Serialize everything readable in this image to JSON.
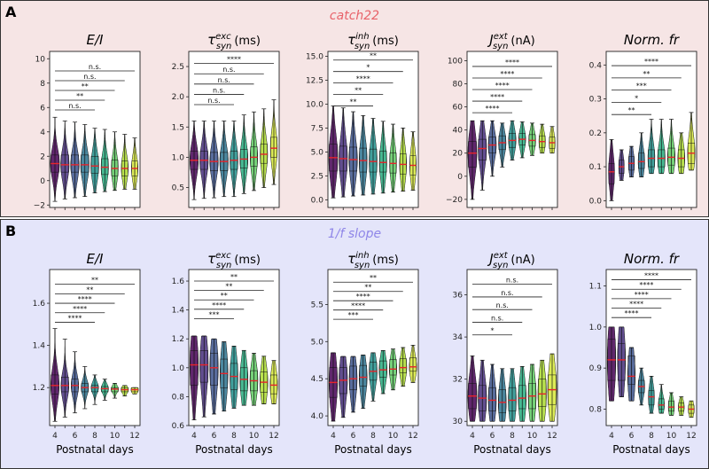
{
  "figure": {
    "panels": [
      {
        "label": "A",
        "title": "catch22",
        "color": "#e8636a",
        "bg": "#f6e5e5"
      },
      {
        "label": "B",
        "title": "1/f slope",
        "color": "#8f86e8",
        "bg": "#e4e5fa"
      }
    ],
    "xlabel": "Postnatal days",
    "xticks": [
      "4",
      "6",
      "8",
      "10",
      "12"
    ]
  },
  "chart_data": [
    {
      "id": "A1",
      "panel": "A",
      "type": "violin",
      "title": "E/I",
      "title_parts": [
        "E/I"
      ],
      "x": [
        4,
        5,
        6,
        7,
        8,
        9,
        10,
        11,
        12
      ],
      "ylim": [
        -2.2,
        10.6
      ],
      "yticks": [
        "−2",
        "0",
        "2",
        "4",
        "6",
        "8",
        "10"
      ],
      "ytick_values": [
        -2,
        0,
        2,
        4,
        6,
        8,
        10
      ],
      "medians": [
        1.4,
        1.3,
        1.3,
        1.3,
        1.2,
        1.1,
        1.0,
        1.0,
        1.0
      ],
      "q1": [
        0.7,
        0.7,
        0.7,
        0.7,
        0.6,
        0.5,
        0.4,
        0.4,
        0.4
      ],
      "q3": [
        2.1,
        2.1,
        2.1,
        2.1,
        2.0,
        1.8,
        1.7,
        1.6,
        1.6
      ],
      "mins": [
        -1.7,
        -1.5,
        -1.4,
        -1.3,
        -1.0,
        -0.9,
        -0.8,
        -0.7,
        -0.7
      ],
      "maxs": [
        5.2,
        4.9,
        4.8,
        4.6,
        4.3,
        4.2,
        4.0,
        3.8,
        3.5
      ],
      "widths": [
        0.9,
        0.85,
        0.85,
        0.85,
        0.8,
        0.75,
        0.7,
        0.7,
        0.65
      ],
      "significance": [
        {
          "label": "n.s.",
          "to": 12,
          "y": 9.0
        },
        {
          "label": "n.s.",
          "to": 11,
          "y": 8.2
        },
        {
          "label": "**",
          "to": 10,
          "y": 7.4
        },
        {
          "label": "**",
          "to": 9,
          "y": 6.6
        },
        {
          "label": "n.s.",
          "to": 8,
          "y": 5.8
        }
      ]
    },
    {
      "id": "A2",
      "panel": "A",
      "type": "violin",
      "title": "τ exc syn (ms)",
      "title_parts": [
        "τ",
        "exc",
        "syn",
        "(ms)"
      ],
      "x": [
        4,
        5,
        6,
        7,
        8,
        9,
        10,
        11,
        12
      ],
      "ylim": [
        0.17,
        2.75
      ],
      "yticks": [
        "0.5",
        "1.0",
        "1.5",
        "2.0",
        "2.5"
      ],
      "ytick_values": [
        0.5,
        1.0,
        1.5,
        2.0,
        2.5
      ],
      "medians": [
        0.95,
        0.95,
        0.93,
        0.93,
        0.95,
        0.97,
        1.0,
        1.05,
        1.15
      ],
      "q1": [
        0.8,
        0.8,
        0.78,
        0.78,
        0.8,
        0.82,
        0.85,
        0.9,
        1.0
      ],
      "q3": [
        1.1,
        1.1,
        1.08,
        1.08,
        1.1,
        1.13,
        1.17,
        1.22,
        1.33
      ],
      "mins": [
        0.3,
        0.32,
        0.33,
        0.35,
        0.35,
        0.4,
        0.45,
        0.5,
        0.55
      ],
      "maxs": [
        1.6,
        1.6,
        1.6,
        1.6,
        1.6,
        1.7,
        1.75,
        1.8,
        1.95
      ],
      "widths": [
        0.85,
        0.85,
        0.85,
        0.85,
        0.8,
        0.8,
        0.75,
        0.75,
        0.7
      ],
      "significance": [
        {
          "label": "****",
          "to": 12,
          "y": 2.55
        },
        {
          "label": "n.s.",
          "to": 11,
          "y": 2.38
        },
        {
          "label": "n.s.",
          "to": 10,
          "y": 2.21
        },
        {
          "label": "n.s.",
          "to": 9,
          "y": 2.04
        },
        {
          "label": "n.s.",
          "to": 8,
          "y": 1.87
        }
      ]
    },
    {
      "id": "A3",
      "panel": "A",
      "type": "violin",
      "title": "τ inh syn (ms)",
      "title_parts": [
        "τ",
        "inh",
        "syn",
        "(ms)"
      ],
      "x": [
        4,
        5,
        6,
        7,
        8,
        9,
        10,
        11,
        12
      ],
      "ylim": [
        -0.8,
        15.5
      ],
      "yticks": [
        "0.0",
        "2.5",
        "5.0",
        "7.5",
        "10.0",
        "12.5",
        "15.0"
      ],
      "ytick_values": [
        0,
        2.5,
        5,
        7.5,
        10,
        12.5,
        15
      ],
      "medians": [
        4.4,
        4.3,
        4.2,
        4.1,
        4.0,
        3.9,
        3.8,
        3.7,
        3.6
      ],
      "q1": [
        3.0,
        3.0,
        3.0,
        2.9,
        2.9,
        2.9,
        2.8,
        2.7,
        2.6
      ],
      "q3": [
        5.8,
        5.6,
        5.5,
        5.4,
        5.3,
        5.1,
        4.9,
        4.8,
        4.6
      ],
      "mins": [
        0.2,
        0.3,
        0.4,
        0.5,
        0.6,
        0.7,
        0.8,
        0.9,
        1.0
      ],
      "maxs": [
        9.8,
        9.6,
        9.2,
        8.8,
        8.5,
        8.2,
        7.9,
        7.5,
        7.1
      ],
      "widths": [
        0.9,
        0.85,
        0.85,
        0.8,
        0.8,
        0.75,
        0.7,
        0.7,
        0.65
      ],
      "significance": [
        {
          "label": "**",
          "to": 12,
          "y": 14.6
        },
        {
          "label": "*",
          "to": 11,
          "y": 13.4
        },
        {
          "label": "****",
          "to": 10,
          "y": 12.2
        },
        {
          "label": "**",
          "to": 9,
          "y": 11.0
        },
        {
          "label": "**",
          "to": 8,
          "y": 9.8
        }
      ]
    },
    {
      "id": "A4",
      "panel": "A",
      "type": "violin",
      "title": "J ext syn (nA)",
      "title_parts": [
        "J",
        "ext",
        "syn",
        "(nA)"
      ],
      "x": [
        4,
        5,
        6,
        7,
        8,
        9,
        10,
        11,
        12
      ],
      "ylim": [
        -27,
        108
      ],
      "yticks": [
        "−20",
        "0",
        "20",
        "40",
        "60",
        "80",
        "100"
      ],
      "ytick_values": [
        -20,
        0,
        20,
        40,
        60,
        80,
        100
      ],
      "medians": [
        20,
        24,
        27,
        29,
        31,
        32,
        31,
        30,
        29
      ],
      "q1": [
        8,
        14,
        20,
        23,
        25,
        27,
        26,
        25,
        24
      ],
      "q3": [
        30,
        32,
        34,
        35,
        37,
        37,
        36,
        35,
        34
      ],
      "mins": [
        -20,
        -12,
        0,
        8,
        14,
        16,
        18,
        20,
        20
      ],
      "maxs": [
        48,
        48,
        48,
        46,
        48,
        47,
        46,
        45,
        43
      ],
      "widths": [
        0.9,
        0.85,
        0.8,
        0.75,
        0.75,
        0.7,
        0.7,
        0.65,
        0.6
      ],
      "significance": [
        {
          "label": "****",
          "to": 12,
          "y": 95
        },
        {
          "label": "****",
          "to": 11,
          "y": 85
        },
        {
          "label": "****",
          "to": 10,
          "y": 75
        },
        {
          "label": "****",
          "to": 9,
          "y": 65
        },
        {
          "label": "****",
          "to": 8,
          "y": 55
        }
      ]
    },
    {
      "id": "A5",
      "panel": "A",
      "type": "violin",
      "title": "Norm. fr",
      "title_parts": [
        "Norm. fr"
      ],
      "x": [
        4,
        5,
        6,
        7,
        8,
        9,
        10,
        11,
        12
      ],
      "ylim": [
        -0.02,
        0.44
      ],
      "yticks": [
        "0.0",
        "0.1",
        "0.2",
        "0.3",
        "0.4"
      ],
      "ytick_values": [
        0,
        0.1,
        0.2,
        0.3,
        0.4
      ],
      "medians": [
        0.085,
        0.1,
        0.11,
        0.115,
        0.125,
        0.125,
        0.128,
        0.125,
        0.14
      ],
      "q1": [
        0.05,
        0.08,
        0.09,
        0.095,
        0.1,
        0.1,
        0.105,
        0.1,
        0.11
      ],
      "q3": [
        0.11,
        0.12,
        0.13,
        0.14,
        0.15,
        0.15,
        0.155,
        0.15,
        0.17
      ],
      "mins": [
        0.0,
        0.06,
        0.07,
        0.07,
        0.08,
        0.08,
        0.08,
        0.08,
        0.09
      ],
      "maxs": [
        0.18,
        0.15,
        0.16,
        0.2,
        0.24,
        0.24,
        0.24,
        0.2,
        0.26
      ],
      "widths": [
        0.6,
        0.55,
        0.6,
        0.65,
        0.7,
        0.75,
        0.75,
        0.7,
        0.75
      ],
      "significance": [
        {
          "label": "****",
          "to": 12,
          "y": 0.398
        },
        {
          "label": "**",
          "to": 11,
          "y": 0.362
        },
        {
          "label": "***",
          "to": 10,
          "y": 0.326
        },
        {
          "label": "*",
          "to": 9,
          "y": 0.29
        },
        {
          "label": "**",
          "to": 8,
          "y": 0.254
        }
      ]
    },
    {
      "id": "B1",
      "panel": "B",
      "type": "violin",
      "title": "E/I",
      "title_parts": [
        "E/I"
      ],
      "x": [
        4,
        5,
        6,
        7,
        8,
        9,
        10,
        11,
        12
      ],
      "ylim": [
        1.02,
        1.76
      ],
      "yticks": [
        "1.2",
        "1.4",
        "1.6"
      ],
      "ytick_values": [
        1.2,
        1.4,
        1.6
      ],
      "medians": [
        1.21,
        1.21,
        1.21,
        1.2,
        1.2,
        1.195,
        1.193,
        1.19,
        1.19
      ],
      "q1": [
        1.17,
        1.18,
        1.18,
        1.18,
        1.18,
        1.18,
        1.18,
        1.18,
        1.18
      ],
      "q3": [
        1.26,
        1.25,
        1.24,
        1.22,
        1.21,
        1.205,
        1.2,
        1.2,
        1.2
      ],
      "mins": [
        1.04,
        1.06,
        1.08,
        1.1,
        1.12,
        1.14,
        1.15,
        1.16,
        1.17
      ],
      "maxs": [
        1.48,
        1.43,
        1.37,
        1.3,
        1.26,
        1.24,
        1.22,
        1.21,
        1.2
      ],
      "widths": [
        0.85,
        0.8,
        0.75,
        0.75,
        0.75,
        0.75,
        0.75,
        0.75,
        0.75
      ],
      "significance": [
        {
          "label": "**",
          "to": 12,
          "y": 1.69
        },
        {
          "label": "**",
          "to": 11,
          "y": 1.645
        },
        {
          "label": "****",
          "to": 10,
          "y": 1.6
        },
        {
          "label": "****",
          "to": 9,
          "y": 1.555
        },
        {
          "label": "****",
          "to": 8,
          "y": 1.51
        }
      ]
    },
    {
      "id": "B2",
      "panel": "B",
      "type": "violin",
      "title": "τ exc syn (ms)",
      "title_parts": [
        "τ",
        "exc",
        "syn",
        "(ms)"
      ],
      "x": [
        4,
        5,
        6,
        7,
        8,
        9,
        10,
        11,
        12
      ],
      "ylim": [
        0.6,
        1.68
      ],
      "yticks": [
        "0.6",
        "0.8",
        "1.0",
        "1.2",
        "1.4",
        "1.6"
      ],
      "ytick_values": [
        0.6,
        0.8,
        1.0,
        1.2,
        1.4,
        1.6
      ],
      "medians": [
        1.02,
        1.02,
        1.0,
        0.96,
        0.94,
        0.92,
        0.91,
        0.9,
        0.88
      ],
      "q1": [
        0.88,
        0.9,
        0.88,
        0.86,
        0.85,
        0.84,
        0.84,
        0.83,
        0.82
      ],
      "q3": [
        1.12,
        1.12,
        1.1,
        1.06,
        1.03,
        1.0,
        0.98,
        0.97,
        0.95
      ],
      "mins": [
        0.64,
        0.66,
        0.68,
        0.7,
        0.72,
        0.74,
        0.74,
        0.75,
        0.75
      ],
      "maxs": [
        1.22,
        1.22,
        1.2,
        1.18,
        1.15,
        1.12,
        1.1,
        1.08,
        1.05
      ],
      "widths": [
        0.85,
        0.85,
        0.85,
        0.8,
        0.8,
        0.8,
        0.8,
        0.8,
        0.75
      ],
      "significance": [
        {
          "label": "**",
          "to": 12,
          "y": 1.6
        },
        {
          "label": "**",
          "to": 11,
          "y": 1.535
        },
        {
          "label": "**",
          "to": 10,
          "y": 1.47
        },
        {
          "label": "****",
          "to": 9,
          "y": 1.405
        },
        {
          "label": "***",
          "to": 8,
          "y": 1.34
        }
      ]
    },
    {
      "id": "B3",
      "panel": "B",
      "type": "violin",
      "title": "τ inh syn (ms)",
      "title_parts": [
        "τ",
        "inh",
        "syn",
        "(ms)"
      ],
      "x": [
        4,
        5,
        6,
        7,
        8,
        9,
        10,
        11,
        12
      ],
      "ylim": [
        3.87,
        5.97
      ],
      "yticks": [
        "4.0",
        "4.5",
        "5.0",
        "5.5"
      ],
      "ytick_values": [
        4.0,
        4.5,
        5.0,
        5.5
      ],
      "medians": [
        4.45,
        4.48,
        4.5,
        4.52,
        4.6,
        4.62,
        4.63,
        4.65,
        4.66
      ],
      "q1": [
        4.25,
        4.3,
        4.35,
        4.4,
        4.48,
        4.52,
        4.55,
        4.58,
        4.6
      ],
      "q3": [
        4.65,
        4.65,
        4.67,
        4.68,
        4.72,
        4.74,
        4.76,
        4.77,
        4.78
      ],
      "mins": [
        3.93,
        3.98,
        4.05,
        4.1,
        4.2,
        4.3,
        4.35,
        4.4,
        4.45
      ],
      "maxs": [
        4.85,
        4.8,
        4.8,
        4.82,
        4.85,
        4.88,
        4.9,
        4.92,
        4.95
      ],
      "widths": [
        0.85,
        0.85,
        0.8,
        0.8,
        0.8,
        0.8,
        0.75,
        0.75,
        0.75
      ],
      "significance": [
        {
          "label": "**",
          "to": 12,
          "y": 5.8
        },
        {
          "label": "**",
          "to": 11,
          "y": 5.675
        },
        {
          "label": "****",
          "to": 10,
          "y": 5.55
        },
        {
          "label": "****",
          "to": 9,
          "y": 5.425
        },
        {
          "label": "***",
          "to": 8,
          "y": 5.3
        }
      ]
    },
    {
      "id": "B4",
      "panel": "B",
      "type": "violin",
      "title": "J ext syn (nA)",
      "title_parts": [
        "J",
        "ext",
        "syn",
        "(nA)"
      ],
      "x": [
        4,
        5,
        6,
        7,
        8,
        9,
        10,
        11,
        12
      ],
      "ylim": [
        29.8,
        37.2
      ],
      "yticks": [
        "30",
        "32",
        "34",
        "36"
      ],
      "ytick_values": [
        30,
        32,
        34,
        36
      ],
      "medians": [
        31.2,
        31.1,
        31.0,
        30.9,
        31.0,
        31.1,
        31.2,
        31.3,
        31.5
      ],
      "q1": [
        30.6,
        30.5,
        30.5,
        30.4,
        30.5,
        30.6,
        30.6,
        30.7,
        30.8
      ],
      "q3": [
        31.8,
        31.7,
        31.6,
        31.5,
        31.6,
        31.7,
        31.8,
        32.0,
        32.2
      ],
      "mins": [
        30.0,
        30.0,
        30.0,
        30.0,
        30.0,
        30.0,
        30.0,
        30.0,
        30.0
      ],
      "maxs": [
        33.1,
        32.9,
        32.7,
        32.5,
        32.5,
        32.6,
        32.7,
        32.9,
        33.2
      ],
      "widths": [
        0.9,
        0.85,
        0.8,
        0.8,
        0.8,
        0.8,
        0.8,
        0.85,
        0.9
      ],
      "significance": [
        {
          "label": "n.s.",
          "to": 12,
          "y": 36.5
        },
        {
          "label": "n.s.",
          "to": 11,
          "y": 35.9
        },
        {
          "label": "n.s.",
          "to": 10,
          "y": 35.3
        },
        {
          "label": "n.s.",
          "to": 9,
          "y": 34.7
        },
        {
          "label": "*",
          "to": 8,
          "y": 34.1
        }
      ]
    },
    {
      "id": "B5",
      "panel": "B",
      "type": "violin",
      "title": "Norm. fr",
      "title_parts": [
        "Norm. fr"
      ],
      "x": [
        4,
        5,
        6,
        7,
        8,
        9,
        10,
        11,
        12
      ],
      "ylim": [
        0.76,
        1.14
      ],
      "yticks": [
        "0.8",
        "0.9",
        "1.0",
        "1.1"
      ],
      "ytick_values": [
        0.8,
        0.9,
        1.0,
        1.1
      ],
      "medians": [
        0.92,
        0.92,
        0.88,
        0.855,
        0.83,
        0.81,
        0.805,
        0.805,
        0.8
      ],
      "q1": [
        0.87,
        0.87,
        0.86,
        0.84,
        0.81,
        0.8,
        0.795,
        0.795,
        0.79
      ],
      "q3": [
        0.97,
        0.96,
        0.93,
        0.87,
        0.845,
        0.825,
        0.82,
        0.815,
        0.81
      ],
      "mins": [
        0.82,
        0.83,
        0.82,
        0.81,
        0.79,
        0.79,
        0.785,
        0.785,
        0.78
      ],
      "maxs": [
        1.0,
        1.0,
        0.95,
        0.9,
        0.88,
        0.86,
        0.84,
        0.83,
        0.82
      ],
      "widths": [
        0.85,
        0.8,
        0.75,
        0.65,
        0.6,
        0.6,
        0.6,
        0.6,
        0.6
      ],
      "significance": [
        {
          "label": "****",
          "to": 12,
          "y": 1.115
        },
        {
          "label": "****",
          "to": 11,
          "y": 1.092
        },
        {
          "label": "****",
          "to": 10,
          "y": 1.069
        },
        {
          "label": "****",
          "to": 9,
          "y": 1.046
        },
        {
          "label": "****",
          "to": 8,
          "y": 1.023
        }
      ]
    }
  ],
  "palette": [
    "#440154",
    "#472f7d",
    "#3b528b",
    "#2c728e",
    "#21918c",
    "#28ae80",
    "#5ec962",
    "#addc30",
    "#d6e83a"
  ],
  "median_color": "#e8232a"
}
